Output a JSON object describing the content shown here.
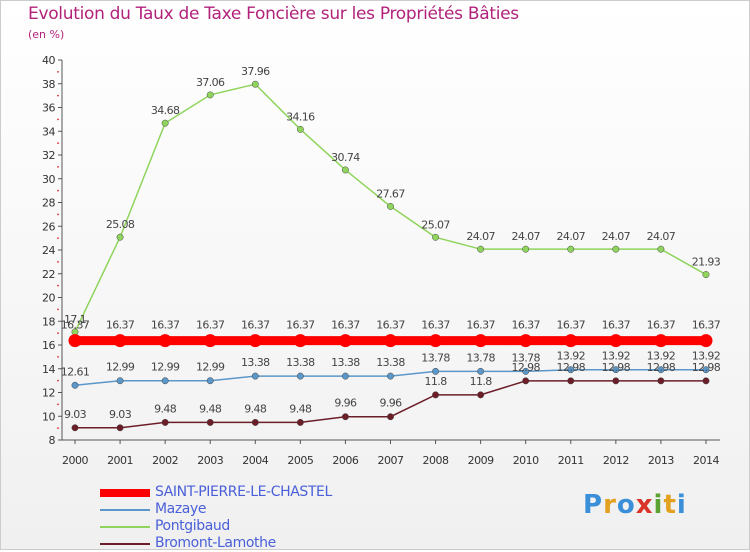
{
  "title": "Evolution du Taux de Taxe Foncière sur les Propriétés Bâties",
  "unit": "(en %)",
  "logo": {
    "letters": [
      "P",
      "r",
      "o",
      "x",
      "i",
      "t",
      "i"
    ],
    "colors": [
      "#3a8fd8",
      "#e2a11f",
      "#3a8fd8",
      "#d8342a",
      "#5aa232",
      "#e2a11f",
      "#3a8fd8"
    ]
  },
  "chart_data": {
    "type": "line",
    "title": "Evolution du Taux de Taxe Foncière sur les Propriétés Bâties",
    "ylabel": "(en %)",
    "xlabel": "",
    "categories": [
      "2000",
      "2001",
      "2002",
      "2003",
      "2004",
      "2005",
      "2006",
      "2007",
      "2008",
      "2009",
      "2010",
      "2011",
      "2012",
      "2013",
      "2014"
    ],
    "ylim": [
      8,
      40
    ],
    "yticks": [
      8,
      10,
      12,
      14,
      16,
      18,
      20,
      22,
      24,
      26,
      28,
      30,
      32,
      34,
      36,
      38,
      40
    ],
    "series": [
      {
        "name": "SAINT-PIERRE-LE-CHASTEL",
        "color": "#ff0000",
        "values": [
          16.37,
          16.37,
          16.37,
          16.37,
          16.37,
          16.37,
          16.37,
          16.37,
          16.37,
          16.37,
          16.37,
          16.37,
          16.37,
          16.37,
          16.37
        ],
        "labels": [
          "16.37",
          "16.37",
          "16.37",
          "16.37",
          "16.37",
          "16.37",
          "16.37",
          "16.37",
          "16.37",
          "16.37",
          "16.37",
          "16.37",
          "16.37",
          "16.37",
          "16.37"
        ]
      },
      {
        "name": "Mazaye",
        "color": "#5b97c8",
        "values": [
          12.61,
          12.99,
          12.99,
          12.99,
          13.38,
          13.38,
          13.38,
          13.38,
          13.78,
          13.78,
          13.78,
          13.92,
          13.92,
          13.92,
          13.92
        ],
        "labels": [
          "12.61",
          "12.99",
          "12.99",
          "12.99",
          "13.38",
          "13.38",
          "13.38",
          "13.38",
          "13.78",
          "13.78",
          "13.78",
          "13.92",
          "13.92",
          "13.92",
          "13.92"
        ]
      },
      {
        "name": "Pontgibaud",
        "color": "#8fd45c",
        "values": [
          17.1,
          25.08,
          34.68,
          37.06,
          37.96,
          34.16,
          30.74,
          27.67,
          25.07,
          24.07,
          24.07,
          24.07,
          24.07,
          24.07,
          21.93
        ],
        "labels": [
          "17.1",
          "25.08",
          "34.68",
          "37.06",
          "37.96",
          "34.16",
          "30.74",
          "27.67",
          "25.07",
          "24.07",
          "24.07",
          "24.07",
          "24.07",
          "24.07",
          "21.93"
        ]
      },
      {
        "name": "Bromont-Lamothe",
        "color": "#6b1d28",
        "values": [
          9.03,
          9.03,
          9.48,
          9.48,
          9.48,
          9.48,
          9.96,
          9.96,
          11.8,
          11.8,
          12.98,
          12.98,
          12.98,
          12.98,
          12.98
        ],
        "labels": [
          "9.03",
          "9.03",
          "9.48",
          "9.48",
          "9.48",
          "9.48",
          "9.96",
          "9.96",
          "11.8",
          "11.8",
          "12.98",
          "12.98",
          "12.98",
          "12.98",
          "12.98"
        ]
      }
    ],
    "legend": "bottom-left",
    "grid": false
  }
}
